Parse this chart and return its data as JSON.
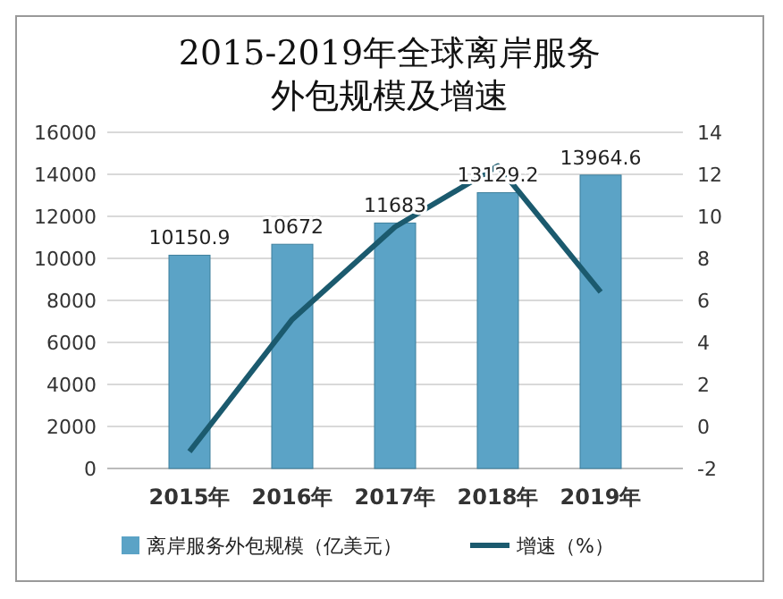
{
  "chart_data": {
    "type": "bar",
    "title": "2015-2019年全球离岸服务外包规模及增速",
    "categories": [
      "2015年",
      "2016年",
      "2017年",
      "2018年",
      "2019年"
    ],
    "series": [
      {
        "name": "离岸服务外包规模（亿美元）",
        "color": "#5ba3c6",
        "values": [
          10150.9,
          10672,
          11683,
          13129.2,
          13964.6
        ],
        "value_labels": [
          "10150.9",
          "10672",
          "11683",
          "13129.2",
          "13964.6"
        ]
      },
      {
        "name": "增速（%）",
        "type": "line",
        "axis": "y2",
        "color": "#1b5a6e",
        "values": [
          -1.2,
          5.1,
          9.5,
          12.4,
          6.4
        ]
      }
    ],
    "ylim": [
      0,
      16000
    ],
    "yticks": [
      0,
      2000,
      4000,
      6000,
      8000,
      10000,
      12000,
      14000,
      16000
    ],
    "y2lim": [
      -2,
      14
    ],
    "y2ticks": [
      -2,
      0,
      2,
      4,
      6,
      8,
      10,
      12,
      14
    ],
    "grid": "y",
    "legend": "bottom"
  }
}
